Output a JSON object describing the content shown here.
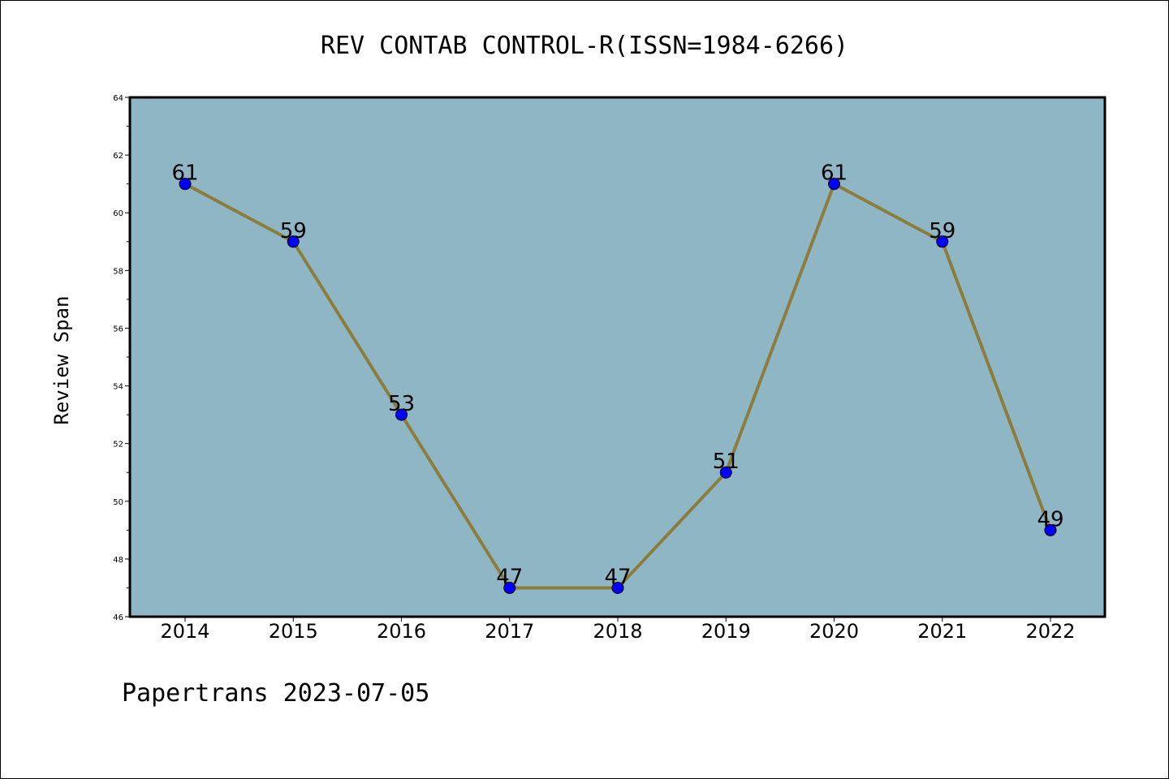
{
  "chart_data": {
    "type": "line",
    "title": "REV CONTAB CONTROL-R(ISSN=1984-6266)",
    "xlabel": "",
    "ylabel": "Review Span",
    "categories": [
      "2014",
      "2015",
      "2016",
      "2017",
      "2018",
      "2019",
      "2020",
      "2021",
      "2022"
    ],
    "series": [
      {
        "values": [
          61,
          59,
          53,
          47,
          47,
          51,
          61,
          59,
          49
        ]
      }
    ],
    "ylim": [
      46,
      64
    ],
    "yticks": [
      46,
      48,
      50,
      52,
      54,
      56,
      58,
      60,
      62,
      64
    ],
    "grid": false,
    "legend": "none",
    "colors": {
      "plot_background": "#8fb6c5",
      "line": "#8c7d3c",
      "marker": "#0000ff"
    }
  },
  "footer": {
    "text": "Papertrans 2023-07-05"
  }
}
